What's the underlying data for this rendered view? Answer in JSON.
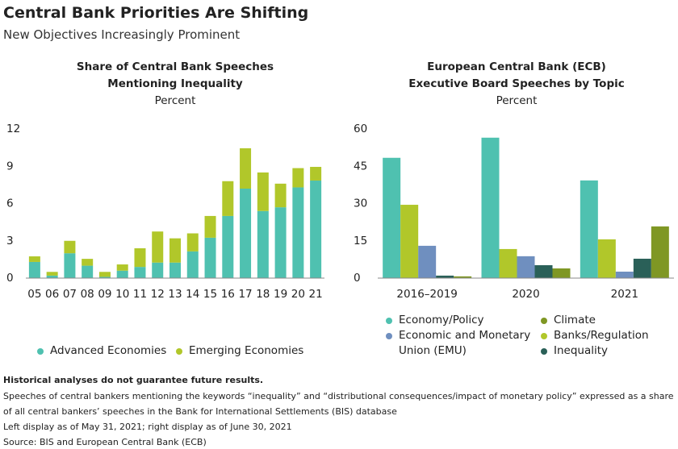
{
  "header": {
    "title": "Central Bank Priorities Are Shifting",
    "subtitle": "New Objectives Increasingly Prominent"
  },
  "chart_data": [
    {
      "type": "stacked-bar",
      "title": "Share of Central Bank Speeches Mentioning Inequality",
      "subtitle": "Percent",
      "categories": [
        "05",
        "06",
        "07",
        "08",
        "09",
        "10",
        "11",
        "12",
        "13",
        "14",
        "15",
        "16",
        "17",
        "18",
        "19",
        "20",
        "21"
      ],
      "series": [
        {
          "name": "Advanced Economies",
          "color": "#4fc1b0",
          "values": [
            1.3,
            0.2,
            2.0,
            1.0,
            0.1,
            0.6,
            0.9,
            1.25,
            1.25,
            2.15,
            3.25,
            5.0,
            7.2,
            5.4,
            5.7,
            7.3,
            7.85
          ]
        },
        {
          "name": "Emerging Economies",
          "color": "#b1c72a",
          "values": [
            0.45,
            0.3,
            1.0,
            0.55,
            0.4,
            0.5,
            1.5,
            2.5,
            1.95,
            1.45,
            1.75,
            2.8,
            3.25,
            3.1,
            1.9,
            1.55,
            1.1
          ]
        }
      ],
      "ylim": [
        0,
        12
      ],
      "yticks": [
        0,
        3,
        6,
        9,
        12
      ],
      "grid": false
    },
    {
      "type": "grouped-bar",
      "title": "European Central Bank (ECB) Executive Board Speeches by Topic",
      "subtitle": "Percent",
      "categories": [
        "2016–2019",
        "2020",
        "2021"
      ],
      "series": [
        {
          "name": "Economy/Policy",
          "color": "#4fc1b0",
          "values": [
            48.4,
            56.5,
            39.3
          ]
        },
        {
          "name": "Banks/Regulation",
          "color": "#b1c72a",
          "values": [
            29.5,
            11.7,
            15.6
          ]
        },
        {
          "name": "Economic and Monetary Union (EMU)",
          "color": "#6f8fbf",
          "values": [
            13,
            8.8,
            2.6
          ]
        },
        {
          "name": "Inequality",
          "color": "#2a6058",
          "values": [
            1,
            5.2,
            7.8
          ]
        },
        {
          "name": "Climate",
          "color": "#7f9724",
          "values": [
            0.7,
            3.9,
            20.8
          ]
        }
      ],
      "ylim": [
        0,
        60
      ],
      "yticks": [
        0,
        15,
        30,
        45,
        60
      ],
      "grid": false
    }
  ],
  "notes": [
    "Historical analyses do not guarantee future results.",
    "Speeches of central bankers mentioning the keywords “inequality” and “distributional consequences/impact of monetary policy” expressed as a share of all central bankers’ speeches in the Bank for International Settlements (BIS) database",
    "Left display as of May 31, 2021; right display as of June 30, 2021",
    "Source: BIS and European Central Bank (ECB)"
  ]
}
